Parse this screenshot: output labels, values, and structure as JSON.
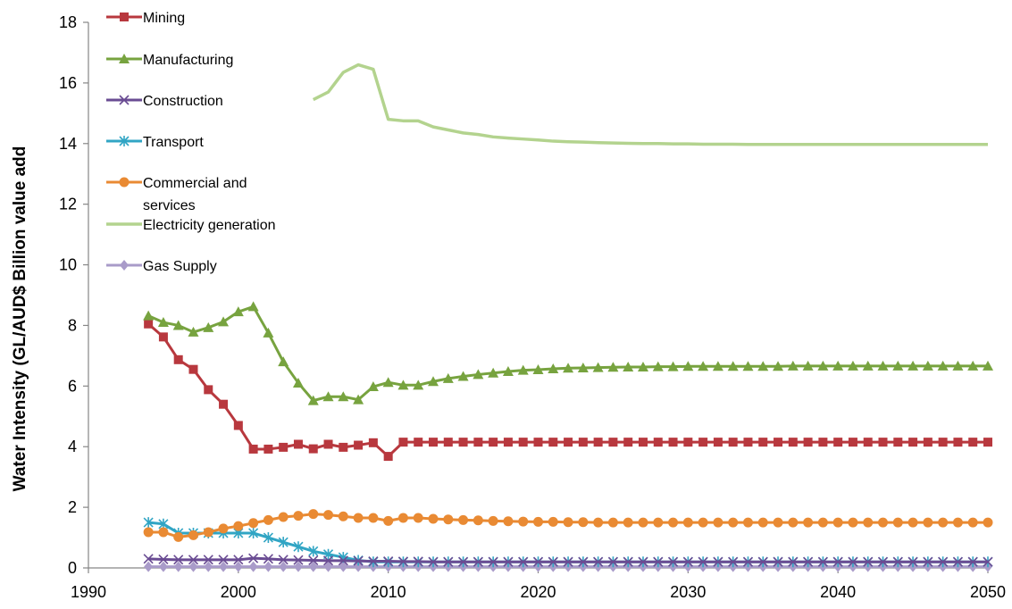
{
  "chart_data": {
    "type": "line",
    "title": "",
    "xlabel": "",
    "ylabel": "Water Intensity (GL/AUD$ Billion value add",
    "xlim": [
      1990,
      2050
    ],
    "ylim": [
      0,
      18
    ],
    "xticks": [
      1990,
      2000,
      2010,
      2020,
      2030,
      2040,
      2050
    ],
    "yticks": [
      0,
      2,
      4,
      6,
      8,
      10,
      12,
      14,
      16,
      18
    ],
    "grid": false,
    "legend_position": "top-left",
    "series": [
      {
        "name": "Mining",
        "color": "#B8383E",
        "marker": "square",
        "x": [
          1994,
          1995,
          1996,
          1997,
          1998,
          1999,
          2000,
          2001,
          2002,
          2003,
          2004,
          2005,
          2006,
          2007,
          2008,
          2009,
          2010,
          2011,
          2012,
          2013,
          2014,
          2015,
          2016,
          2017,
          2018,
          2019,
          2020,
          2021,
          2022,
          2023,
          2024,
          2025,
          2026,
          2027,
          2028,
          2029,
          2030,
          2031,
          2032,
          2033,
          2034,
          2035,
          2036,
          2037,
          2038,
          2039,
          2040,
          2041,
          2042,
          2043,
          2044,
          2045,
          2046,
          2047,
          2048,
          2049,
          2050
        ],
        "values": [
          8.05,
          7.62,
          6.87,
          6.55,
          5.88,
          5.4,
          4.7,
          3.92,
          3.92,
          3.98,
          4.08,
          3.93,
          4.08,
          3.98,
          4.05,
          4.13,
          3.68,
          4.15,
          4.15,
          4.15,
          4.15,
          4.15,
          4.15,
          4.15,
          4.15,
          4.15,
          4.15,
          4.15,
          4.15,
          4.15,
          4.15,
          4.15,
          4.15,
          4.15,
          4.15,
          4.15,
          4.15,
          4.15,
          4.15,
          4.15,
          4.15,
          4.15,
          4.15,
          4.15,
          4.15,
          4.15,
          4.15,
          4.15,
          4.15,
          4.15,
          4.15,
          4.15,
          4.15,
          4.15,
          4.15,
          4.15,
          4.15
        ]
      },
      {
        "name": "Manufacturing",
        "color": "#77A33F",
        "marker": "triangle",
        "x": [
          1994,
          1995,
          1996,
          1997,
          1998,
          1999,
          2000,
          2001,
          2002,
          2003,
          2004,
          2005,
          2006,
          2007,
          2008,
          2009,
          2010,
          2011,
          2012,
          2013,
          2014,
          2015,
          2016,
          2017,
          2018,
          2019,
          2020,
          2021,
          2022,
          2023,
          2024,
          2025,
          2026,
          2027,
          2028,
          2029,
          2030,
          2031,
          2032,
          2033,
          2034,
          2035,
          2036,
          2037,
          2038,
          2039,
          2040,
          2041,
          2042,
          2043,
          2044,
          2045,
          2046,
          2047,
          2048,
          2049,
          2050
        ],
        "values": [
          8.32,
          8.1,
          8.0,
          7.78,
          7.93,
          8.12,
          8.45,
          8.62,
          7.75,
          6.8,
          6.1,
          5.52,
          5.65,
          5.65,
          5.55,
          5.98,
          6.12,
          6.03,
          6.03,
          6.15,
          6.25,
          6.32,
          6.38,
          6.43,
          6.48,
          6.52,
          6.54,
          6.57,
          6.59,
          6.6,
          6.61,
          6.62,
          6.63,
          6.63,
          6.64,
          6.64,
          6.65,
          6.65,
          6.65,
          6.65,
          6.65,
          6.65,
          6.65,
          6.66,
          6.66,
          6.66,
          6.66,
          6.66,
          6.66,
          6.66,
          6.66,
          6.66,
          6.66,
          6.66,
          6.66,
          6.66,
          6.66
        ]
      },
      {
        "name": "Construction",
        "color": "#6A4C93",
        "marker": "x",
        "x": [
          1994,
          1995,
          1996,
          1997,
          1998,
          1999,
          2000,
          2001,
          2002,
          2003,
          2004,
          2005,
          2006,
          2007,
          2008,
          2009,
          2010,
          2011,
          2012,
          2013,
          2014,
          2015,
          2016,
          2017,
          2018,
          2019,
          2020,
          2021,
          2022,
          2023,
          2024,
          2025,
          2026,
          2027,
          2028,
          2029,
          2030,
          2031,
          2032,
          2033,
          2034,
          2035,
          2036,
          2037,
          2038,
          2039,
          2040,
          2041,
          2042,
          2043,
          2044,
          2045,
          2046,
          2047,
          2048,
          2049,
          2050
        ],
        "values": [
          0.3,
          0.28,
          0.27,
          0.27,
          0.27,
          0.27,
          0.27,
          0.32,
          0.3,
          0.27,
          0.26,
          0.25,
          0.24,
          0.24,
          0.23,
          0.22,
          0.22,
          0.21,
          0.21,
          0.2,
          0.2,
          0.2,
          0.2,
          0.2,
          0.2,
          0.2,
          0.2,
          0.2,
          0.2,
          0.2,
          0.2,
          0.2,
          0.2,
          0.2,
          0.2,
          0.2,
          0.2,
          0.2,
          0.2,
          0.2,
          0.2,
          0.2,
          0.2,
          0.2,
          0.2,
          0.2,
          0.2,
          0.2,
          0.2,
          0.2,
          0.2,
          0.2,
          0.2,
          0.2,
          0.2,
          0.2,
          0.2
        ]
      },
      {
        "name": "Transport",
        "color": "#31A5C4",
        "marker": "star",
        "x": [
          1994,
          1995,
          1996,
          1997,
          1998,
          1999,
          2000,
          2001,
          2002,
          2003,
          2004,
          2005,
          2006,
          2007,
          2008,
          2009,
          2010,
          2011,
          2012,
          2013,
          2014,
          2015,
          2016,
          2017,
          2018,
          2019,
          2020,
          2021,
          2022,
          2023,
          2024,
          2025,
          2026,
          2027,
          2028,
          2029,
          2030,
          2031,
          2032,
          2033,
          2034,
          2035,
          2036,
          2037,
          2038,
          2039,
          2040,
          2041,
          2042,
          2043,
          2044,
          2045,
          2046,
          2047,
          2048,
          2049,
          2050
        ],
        "values": [
          1.5,
          1.45,
          1.15,
          1.15,
          1.15,
          1.15,
          1.15,
          1.15,
          1.0,
          0.85,
          0.7,
          0.55,
          0.45,
          0.35,
          0.25,
          0.2,
          0.2,
          0.2,
          0.2,
          0.2,
          0.2,
          0.2,
          0.2,
          0.2,
          0.2,
          0.2,
          0.2,
          0.2,
          0.2,
          0.2,
          0.2,
          0.2,
          0.2,
          0.2,
          0.2,
          0.2,
          0.2,
          0.2,
          0.2,
          0.2,
          0.2,
          0.2,
          0.2,
          0.2,
          0.2,
          0.2,
          0.2,
          0.2,
          0.2,
          0.2,
          0.2,
          0.2,
          0.2,
          0.2,
          0.2,
          0.2,
          0.2
        ]
      },
      {
        "name": "Commercial and services",
        "legend_lines": [
          "Commercial and",
          "services"
        ],
        "color": "#E98A33",
        "marker": "circle",
        "x": [
          1994,
          1995,
          1996,
          1997,
          1998,
          1999,
          2000,
          2001,
          2002,
          2003,
          2004,
          2005,
          2006,
          2007,
          2008,
          2009,
          2010,
          2011,
          2012,
          2013,
          2014,
          2015,
          2016,
          2017,
          2018,
          2019,
          2020,
          2021,
          2022,
          2023,
          2024,
          2025,
          2026,
          2027,
          2028,
          2029,
          2030,
          2031,
          2032,
          2033,
          2034,
          2035,
          2036,
          2037,
          2038,
          2039,
          2040,
          2041,
          2042,
          2043,
          2044,
          2045,
          2046,
          2047,
          2048,
          2049,
          2050
        ],
        "values": [
          1.18,
          1.18,
          1.02,
          1.08,
          1.18,
          1.3,
          1.38,
          1.48,
          1.58,
          1.68,
          1.72,
          1.78,
          1.75,
          1.7,
          1.65,
          1.65,
          1.55,
          1.65,
          1.65,
          1.62,
          1.6,
          1.58,
          1.57,
          1.55,
          1.54,
          1.53,
          1.52,
          1.52,
          1.51,
          1.51,
          1.5,
          1.5,
          1.5,
          1.5,
          1.5,
          1.5,
          1.5,
          1.5,
          1.5,
          1.5,
          1.5,
          1.5,
          1.5,
          1.5,
          1.5,
          1.5,
          1.5,
          1.5,
          1.5,
          1.5,
          1.5,
          1.5,
          1.5,
          1.5,
          1.5,
          1.5,
          1.5
        ]
      },
      {
        "name": "Electricity generation",
        "color": "#B3D38E",
        "marker": "none",
        "x": [
          2005,
          2006,
          2007,
          2008,
          2009,
          2010,
          2011,
          2012,
          2013,
          2014,
          2015,
          2016,
          2017,
          2018,
          2019,
          2020,
          2021,
          2022,
          2023,
          2024,
          2025,
          2026,
          2027,
          2028,
          2029,
          2030,
          2031,
          2032,
          2033,
          2034,
          2035,
          2036,
          2037,
          2038,
          2039,
          2040,
          2041,
          2042,
          2043,
          2044,
          2045,
          2046,
          2047,
          2048,
          2049,
          2050
        ],
        "values": [
          15.45,
          15.7,
          16.35,
          16.6,
          16.45,
          14.8,
          14.75,
          14.75,
          14.55,
          14.45,
          14.35,
          14.3,
          14.22,
          14.18,
          14.15,
          14.12,
          14.08,
          14.06,
          14.05,
          14.03,
          14.02,
          14.01,
          14.0,
          14.0,
          13.99,
          13.99,
          13.98,
          13.98,
          13.98,
          13.97,
          13.97,
          13.97,
          13.97,
          13.97,
          13.97,
          13.97,
          13.97,
          13.97,
          13.97,
          13.97,
          13.97,
          13.97,
          13.97,
          13.97,
          13.97,
          13.97
        ]
      },
      {
        "name": "Gas Supply",
        "color": "#A99BC9",
        "marker": "diamond",
        "x": [
          1994,
          1995,
          1996,
          1997,
          1998,
          1999,
          2000,
          2001,
          2002,
          2003,
          2004,
          2005,
          2006,
          2007,
          2008,
          2009,
          2010,
          2011,
          2012,
          2013,
          2014,
          2015,
          2016,
          2017,
          2018,
          2019,
          2020,
          2021,
          2022,
          2023,
          2024,
          2025,
          2026,
          2027,
          2028,
          2029,
          2030,
          2031,
          2032,
          2033,
          2034,
          2035,
          2036,
          2037,
          2038,
          2039,
          2040,
          2041,
          2042,
          2043,
          2044,
          2045,
          2046,
          2047,
          2048,
          2049,
          2050
        ],
        "values": [
          0.04,
          0.04,
          0.04,
          0.04,
          0.04,
          0.04,
          0.04,
          0.04,
          0.04,
          0.04,
          0.04,
          0.04,
          0.04,
          0.04,
          0.04,
          0.04,
          0.04,
          0.04,
          0.04,
          0.04,
          0.04,
          0.04,
          0.04,
          0.04,
          0.04,
          0.04,
          0.04,
          0.04,
          0.04,
          0.04,
          0.04,
          0.04,
          0.04,
          0.04,
          0.04,
          0.04,
          0.04,
          0.04,
          0.04,
          0.04,
          0.04,
          0.04,
          0.04,
          0.04,
          0.04,
          0.04,
          0.04,
          0.04,
          0.04,
          0.04,
          0.04,
          0.04,
          0.04,
          0.04,
          0.04,
          0.04,
          0.04
        ]
      }
    ]
  }
}
